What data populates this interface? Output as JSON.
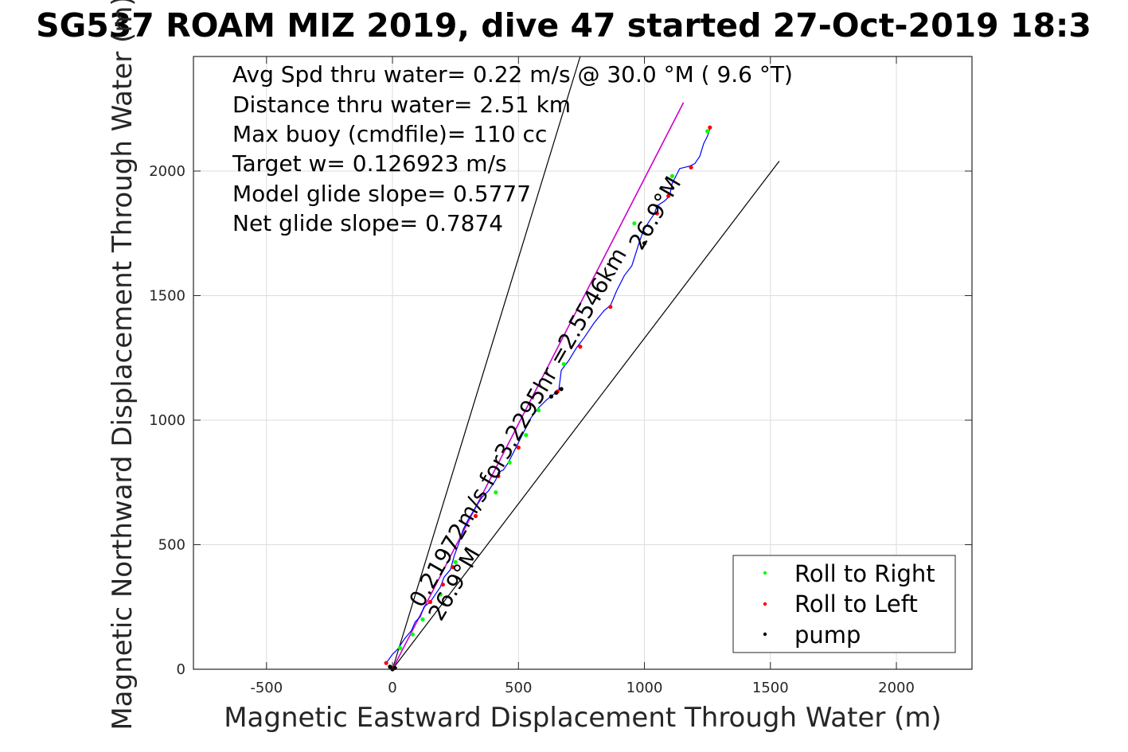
{
  "chart_data": {
    "type": "line",
    "title": "SG537 ROAM MIZ 2019, dive 47 started 27-Oct-2019 18:3",
    "xlabel": "Magnetic Eastward Displacement Through Water (m)",
    "ylabel": "Magnetic Northward Displacement Through Water (m)",
    "xlim": [
      -790,
      2300
    ],
    "ylim": [
      0,
      2460
    ],
    "xticks": [
      -500,
      0,
      500,
      1000,
      1500,
      2000
    ],
    "yticks": [
      0,
      500,
      1000,
      1500,
      2000
    ],
    "xtick_labels": [
      "-500",
      "0",
      "500",
      "1000",
      "1500",
      "2000"
    ],
    "ytick_labels": [
      "0",
      "500",
      "1000",
      "1500",
      "2000"
    ],
    "grid": true,
    "legend_position": "bottom-right",
    "info_lines": [
      "Avg Spd thru water=  0.22 m/s @  30.0 °M (  9.6 °T)",
      "Distance thru water=  2.51 km",
      "Max buoy (cmdfile)= 110 cc",
      "Target w= 0.126923 m/s",
      "Model glide slope= 0.5777",
      "Net glide slope= 0.7874"
    ],
    "annotations": {
      "heading_upper": "26.9°M",
      "heading_lower": "26.9°M",
      "speed_label": "0.21972m/s for3.2295hr =2.5546km"
    },
    "guide_lines": [
      {
        "x": [
          0,
          745
        ],
        "y": [
          0,
          2460
        ]
      },
      {
        "x": [
          0,
          1535
        ],
        "y": [
          0,
          2040
        ]
      },
      {
        "x": [
          0,
          1155
        ],
        "y": [
          0,
          2275
        ]
      }
    ],
    "series": [
      {
        "name": "track",
        "color": "#0000ff",
        "x": [
          -25,
          0,
          20,
          30,
          50,
          75,
          90,
          110,
          125,
          150,
          170,
          190,
          205,
          230,
          245,
          265,
          280,
          300,
          330,
          355,
          380,
          410,
          420,
          440,
          460,
          480,
          500,
          520,
          550,
          580,
          610,
          635,
          660,
          670,
          700,
          730,
          760,
          800,
          840,
          865,
          890,
          920,
          950,
          975,
          995,
          1020,
          1040,
          1050,
          1080,
          1100,
          1110,
          1125,
          1140,
          1160,
          1180,
          1200,
          1220,
          1235,
          1250,
          1260
        ],
        "y": [
          25,
          60,
          80,
          95,
          125,
          155,
          190,
          210,
          250,
          270,
          300,
          330,
          370,
          400,
          455,
          510,
          560,
          600,
          650,
          690,
          715,
          760,
          790,
          800,
          830,
          870,
          910,
          950,
          1010,
          1050,
          1080,
          1100,
          1120,
          1200,
          1240,
          1290,
          1330,
          1390,
          1440,
          1460,
          1520,
          1580,
          1620,
          1700,
          1760,
          1800,
          1830,
          1860,
          1880,
          1900,
          1950,
          1980,
          2010,
          2015,
          2020,
          2030,
          2060,
          2110,
          2140,
          2170
        ]
      },
      {
        "name": "Roll to Right",
        "color": "#00ff00",
        "x": [
          30,
          80,
          120,
          190,
          250,
          410,
          465,
          530,
          580,
          680,
          960,
          1110,
          1250
        ],
        "y": [
          85,
          140,
          200,
          300,
          430,
          710,
          830,
          940,
          1040,
          1225,
          1790,
          1980,
          2160
        ]
      },
      {
        "name": "Roll to Left",
        "color": "#ff0000",
        "x": [
          -25,
          0,
          150,
          200,
          240,
          330,
          420,
          500,
          655,
          745,
          865,
          1050,
          1095,
          1185,
          1260
        ],
        "y": [
          25,
          5,
          270,
          340,
          410,
          615,
          775,
          890,
          1115,
          1295,
          1455,
          1830,
          1900,
          2015,
          2175
        ]
      },
      {
        "name": "pump",
        "color": "#000000",
        "x": [
          -10,
          0,
          10,
          630,
          650,
          670,
          1000
        ],
        "y": [
          10,
          0,
          5,
          1095,
          1110,
          1125,
          1710
        ]
      }
    ],
    "legend": [
      "Roll to Right",
      "Roll to Left",
      "pump"
    ]
  }
}
